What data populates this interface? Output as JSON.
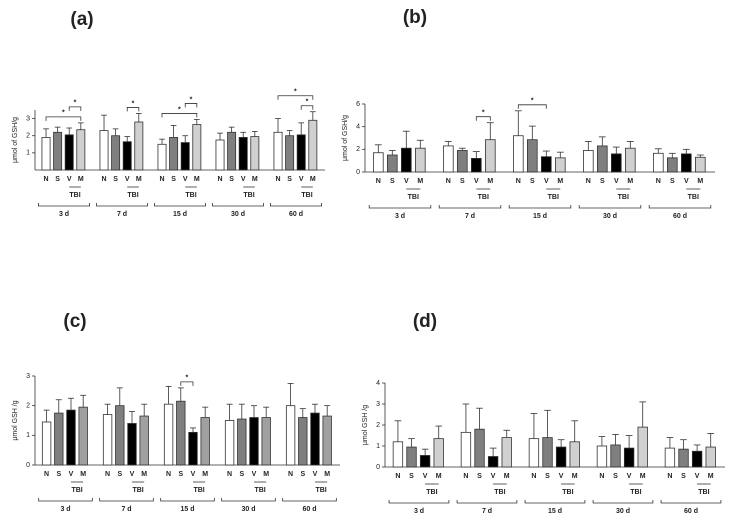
{
  "chart_data": [
    {
      "type": "bar",
      "panel_label": "(a)",
      "y_label": "μmol of GSH/g",
      "categories": [
        "N",
        "S",
        "V",
        "M"
      ],
      "colors": [
        "#ffffff",
        "#7f7f7f",
        "#000000",
        "#d0d0d0"
      ],
      "tbi_label": "TBI",
      "ylim": [
        0,
        3.5
      ],
      "yticks": [
        1,
        2,
        3
      ],
      "groups": [
        {
          "label": "3 d",
          "values": [
            1.9,
            2.2,
            2.05,
            2.35
          ],
          "errors": [
            0.5,
            0.3,
            0.4,
            0.4
          ]
        },
        {
          "label": "7 d",
          "values": [
            2.3,
            2.0,
            1.65,
            2.8
          ],
          "errors": [
            0.9,
            0.4,
            0.3,
            0.5
          ]
        },
        {
          "label": "15 d",
          "values": [
            1.5,
            1.9,
            1.6,
            2.65
          ],
          "errors": [
            0.3,
            0.7,
            0.4,
            0.3
          ]
        },
        {
          "label": "30 d",
          "values": [
            1.75,
            2.2,
            1.9,
            1.95
          ],
          "errors": [
            0.4,
            0.3,
            0.3,
            0.3
          ]
        },
        {
          "label": "60 d",
          "values": [
            2.2,
            2.0,
            2.05,
            2.9
          ],
          "errors": [
            0.8,
            0.3,
            0.7,
            0.5
          ]
        }
      ],
      "significance": [
        {
          "label": "*",
          "from": [
            0,
            0
          ],
          "to": [
            0,
            3
          ]
        },
        {
          "label": "*",
          "from": [
            0,
            2
          ],
          "to": [
            0,
            3
          ]
        },
        {
          "label": "*",
          "from": [
            1,
            2
          ],
          "to": [
            1,
            3
          ]
        },
        {
          "label": "*",
          "from": [
            2,
            0
          ],
          "to": [
            2,
            3
          ]
        },
        {
          "label": "*",
          "from": [
            2,
            2
          ],
          "to": [
            2,
            3
          ]
        },
        {
          "label": "*",
          "from": [
            4,
            2
          ],
          "to": [
            4,
            3
          ]
        },
        {
          "label": "*",
          "from": [
            4,
            0
          ],
          "to": [
            4,
            3
          ]
        }
      ]
    },
    {
      "type": "bar",
      "panel_label": "(b)",
      "y_label": "μmol of GSH/g",
      "categories": [
        "N",
        "S",
        "V",
        "M"
      ],
      "colors": [
        "#ffffff",
        "#7f7f7f",
        "#000000",
        "#d0d0d0"
      ],
      "tbi_label": "TBI",
      "ylim": [
        0,
        6
      ],
      "yticks": [
        0,
        2,
        4,
        6
      ],
      "groups": [
        {
          "label": "3 d",
          "values": [
            1.7,
            1.5,
            2.1,
            2.1
          ],
          "errors": [
            0.7,
            0.4,
            1.5,
            0.7
          ]
        },
        {
          "label": "7 d",
          "values": [
            2.3,
            1.9,
            1.2,
            2.85
          ],
          "errors": [
            0.4,
            0.2,
            0.6,
            1.5
          ]
        },
        {
          "label": "15 d",
          "values": [
            3.2,
            2.85,
            1.35,
            1.25
          ],
          "errors": [
            2.2,
            1.2,
            0.5,
            0.5
          ]
        },
        {
          "label": "30 d",
          "values": [
            1.9,
            2.3,
            1.6,
            2.1
          ],
          "errors": [
            0.8,
            0.8,
            0.6,
            0.6
          ]
        },
        {
          "label": "60 d",
          "values": [
            1.65,
            1.25,
            1.6,
            1.3
          ],
          "errors": [
            0.4,
            0.4,
            0.4,
            0.2
          ]
        }
      ],
      "significance": [
        {
          "label": "*",
          "from": [
            1,
            2
          ],
          "to": [
            1,
            3
          ]
        },
        {
          "label": "*",
          "from": [
            2,
            0
          ],
          "to": [
            2,
            2
          ]
        }
      ]
    },
    {
      "type": "bar",
      "panel_label": "(c)",
      "y_label": "μmol GSH /g",
      "categories": [
        "N",
        "S",
        "V",
        "M"
      ],
      "colors": [
        "#ffffff",
        "#7f7f7f",
        "#000000",
        "#a0a0a0"
      ],
      "tbi_label": "TBI",
      "ylim": [
        0,
        3
      ],
      "yticks": [
        0,
        1,
        2,
        3
      ],
      "groups": [
        {
          "label": "3 d",
          "values": [
            1.45,
            1.75,
            1.85,
            1.95
          ],
          "errors": [
            0.4,
            0.45,
            0.4,
            0.4
          ]
        },
        {
          "label": "7 d",
          "values": [
            1.7,
            2.0,
            1.4,
            1.65
          ],
          "errors": [
            0.35,
            0.6,
            0.4,
            0.4
          ]
        },
        {
          "label": "15 d",
          "values": [
            2.05,
            2.15,
            1.1,
            1.6
          ],
          "errors": [
            0.6,
            0.45,
            0.15,
            0.35
          ]
        },
        {
          "label": "30 d",
          "values": [
            1.5,
            1.55,
            1.6,
            1.6
          ],
          "errors": [
            0.55,
            0.5,
            0.4,
            0.35
          ]
        },
        {
          "label": "60 d",
          "values": [
            2.0,
            1.6,
            1.75,
            1.65
          ],
          "errors": [
            0.75,
            0.3,
            0.3,
            0.35
          ]
        }
      ],
      "significance": [
        {
          "label": "*",
          "from": [
            2,
            1
          ],
          "to": [
            2,
            2
          ]
        }
      ]
    },
    {
      "type": "bar",
      "panel_label": "(d)",
      "y_label": "μmol GSH /g",
      "categories": [
        "N",
        "S",
        "V",
        "M"
      ],
      "colors": [
        "#ffffff",
        "#7f7f7f",
        "#000000",
        "#d0d0d0"
      ],
      "tbi_label": "TBI",
      "ylim": [
        0,
        4
      ],
      "yticks": [
        0,
        1,
        2,
        3,
        4
      ],
      "groups": [
        {
          "label": "3 d",
          "values": [
            1.2,
            0.95,
            0.55,
            1.35
          ],
          "errors": [
            1.0,
            0.4,
            0.3,
            0.6
          ]
        },
        {
          "label": "7 d",
          "values": [
            1.65,
            1.8,
            0.5,
            1.4
          ],
          "errors": [
            1.35,
            1.0,
            0.4,
            0.35
          ]
        },
        {
          "label": "15 d",
          "values": [
            1.35,
            1.4,
            0.95,
            1.2
          ],
          "errors": [
            1.2,
            1.3,
            0.35,
            1.0
          ]
        },
        {
          "label": "30 d",
          "values": [
            1.0,
            1.05,
            0.9,
            1.9
          ],
          "errors": [
            0.45,
            0.5,
            0.6,
            1.2
          ]
        },
        {
          "label": "60 d",
          "values": [
            0.9,
            0.85,
            0.75,
            0.95
          ],
          "errors": [
            0.5,
            0.45,
            0.3,
            0.65
          ]
        }
      ],
      "significance": []
    }
  ]
}
